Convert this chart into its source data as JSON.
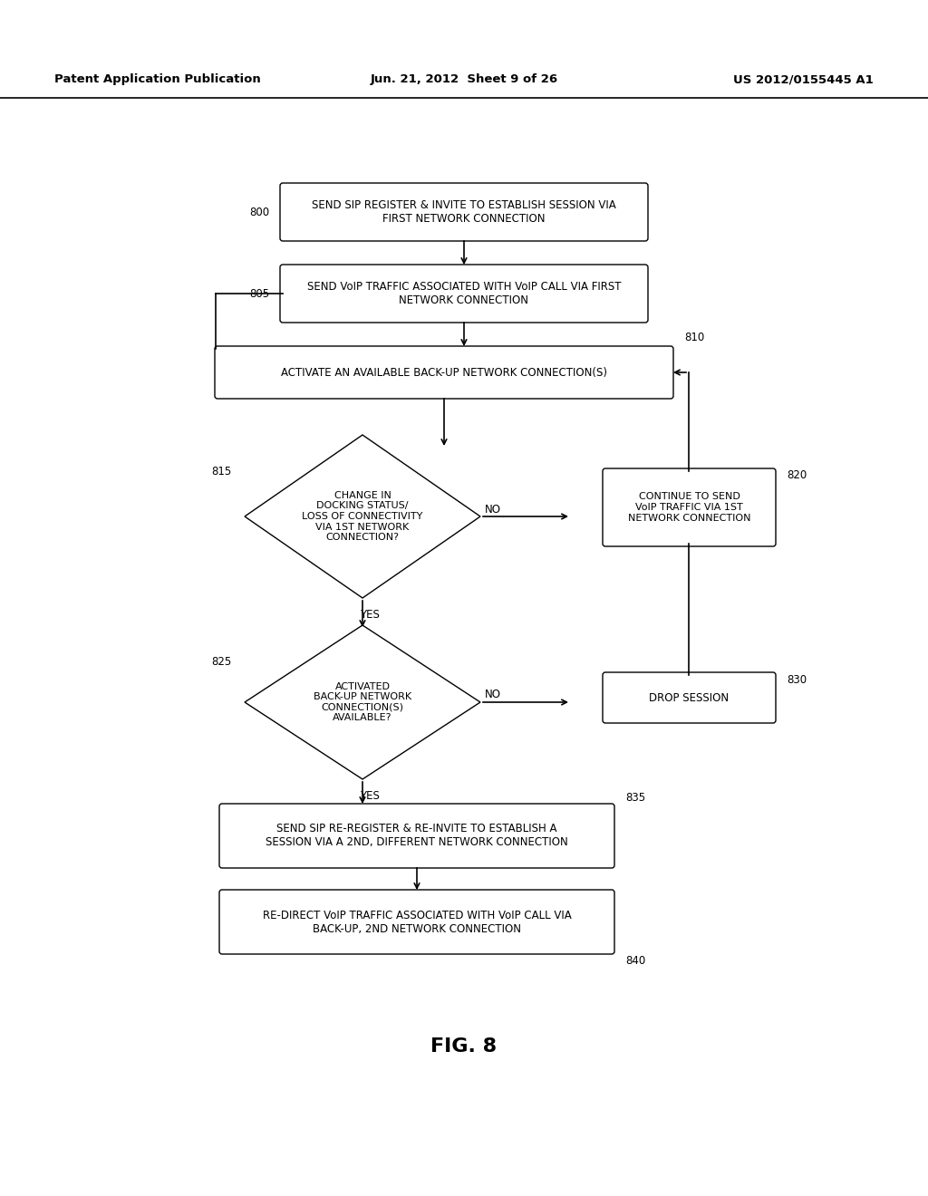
{
  "bg_color": "#ffffff",
  "header_left": "Patent Application Publication",
  "header_mid": "Jun. 21, 2012  Sheet 9 of 26",
  "header_right": "US 2012/0155445 A1",
  "figure_label": "FIG. 8",
  "box800_text": "SEND SIP REGISTER & INVITE TO ESTABLISH SESSION VIA\nFIRST NETWORK CONNECTION",
  "box805_text": "SEND VoIP TRAFFIC ASSOCIATED WITH VoIP CALL VIA FIRST\nNETWORK CONNECTION",
  "box810_text": "ACTIVATE AN AVAILABLE BACK-UP NETWORK CONNECTION(S)",
  "box820_text": "CONTINUE TO SEND\nVoIP TRAFFIC VIA 1ST\nNETWORK CONNECTION",
  "box815_text": "CHANGE IN\nDOCKING STATUS/\nLOSS OF CONNECTIVITY\nVIA 1ST NETWORK\nCONNECTION?",
  "box830_text": "DROP SESSION",
  "box825_text": "ACTIVATED\nBACK-UP NETWORK\nCONNECTION(S)\nAVAILABLE?",
  "box835_text": "SEND SIP RE-REGISTER & RE-INVITE TO ESTABLISH A\nSESSION VIA A 2ND, DIFFERENT NETWORK CONNECTION",
  "box840_text": "RE-DIRECT VoIP TRAFFIC ASSOCIATED WITH VoIP CALL VIA\nBACK-UP, 2ND NETWORK CONNECTION"
}
